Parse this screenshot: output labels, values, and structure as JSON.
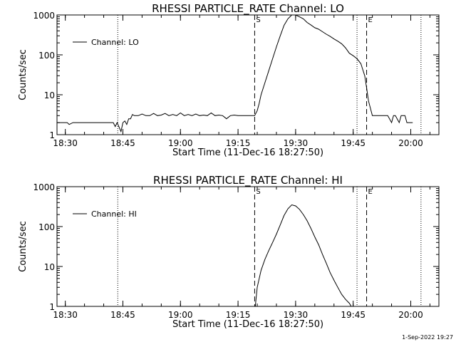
{
  "timestamp": "1-Sep-2022 19:27",
  "chart_data": [
    {
      "type": "line",
      "title": "RHESSI PARTICLE_RATE Channel: LO",
      "xlabel": "Start Time (11-Dec-16 18:27:50)",
      "ylabel": "Counts/sec",
      "y_scale": "log",
      "ylim": [
        1,
        1000
      ],
      "xlim": [
        "18:27:50",
        "20:07:20"
      ],
      "x_ticks": [
        "18:30",
        "18:45",
        "19:00",
        "19:15",
        "19:30",
        "19:45",
        "20:00"
      ],
      "y_ticks": [
        "1",
        "10",
        "100",
        "1000"
      ],
      "legend": {
        "position": "top-left",
        "entries": [
          "Channel: LO"
        ]
      },
      "markers": [
        {
          "label": "S",
          "time": "19:19:20",
          "style": "dashed"
        },
        {
          "label": "E",
          "time": "19:48:30",
          "style": "dashed"
        }
      ],
      "reference_lines": [
        {
          "time": "18:43:40",
          "style": "dotted"
        },
        {
          "time": "19:46:00",
          "style": "dotted"
        },
        {
          "time": "20:02:40",
          "style": "dotted"
        }
      ],
      "series": [
        {
          "name": "Channel: LO",
          "points": [
            [
              "18:27:50",
              2
            ],
            [
              "18:30:30",
              2
            ],
            [
              "18:31:00",
              1.8
            ],
            [
              "18:32:00",
              2
            ],
            [
              "18:33:30",
              2
            ],
            [
              "18:34:30",
              2
            ],
            [
              "18:35:30",
              2
            ],
            [
              "18:37:00",
              2
            ],
            [
              "18:38:30",
              2
            ],
            [
              "18:40:00",
              2
            ],
            [
              "18:41:30",
              2
            ],
            [
              "18:42:30",
              2
            ],
            [
              "18:43:00",
              1.6
            ],
            [
              "18:43:30",
              2
            ],
            [
              "18:44:30",
              1.2
            ],
            [
              "18:45:00",
              2
            ],
            [
              "18:45:30",
              2.2
            ],
            [
              "18:46:00",
              1.8
            ],
            [
              "18:46:30",
              2.5
            ],
            [
              "18:47:00",
              2.5
            ],
            [
              "18:47:30",
              3.2
            ],
            [
              "18:48:00",
              3
            ],
            [
              "18:49:00",
              3
            ],
            [
              "18:50:00",
              3.3
            ],
            [
              "18:51:00",
              3
            ],
            [
              "18:52:00",
              3
            ],
            [
              "18:53:00",
              3.4
            ],
            [
              "18:54:00",
              3
            ],
            [
              "18:55:00",
              3.1
            ],
            [
              "18:56:00",
              3.4
            ],
            [
              "18:57:00",
              3
            ],
            [
              "18:58:00",
              3.2
            ],
            [
              "18:59:00",
              3
            ],
            [
              "19:00:00",
              3.5
            ],
            [
              "19:01:00",
              3
            ],
            [
              "19:02:00",
              3.2
            ],
            [
              "19:03:00",
              3
            ],
            [
              "19:04:00",
              3.3
            ],
            [
              "19:05:00",
              3
            ],
            [
              "19:06:00",
              3.1
            ],
            [
              "19:07:00",
              3
            ],
            [
              "19:08:00",
              3.5
            ],
            [
              "19:09:00",
              3
            ],
            [
              "19:10:00",
              3.1
            ],
            [
              "19:11:00",
              3
            ],
            [
              "19:12:00",
              2.5
            ],
            [
              "19:13:00",
              3
            ],
            [
              "19:14:00",
              3.1
            ],
            [
              "19:15:00",
              3
            ],
            [
              "19:16:00",
              3
            ],
            [
              "19:17:00",
              3
            ],
            [
              "19:18:00",
              3
            ],
            [
              "19:19:20",
              3
            ],
            [
              "19:20:00",
              4
            ],
            [
              "19:20:30",
              6
            ],
            [
              "19:21:00",
              10
            ],
            [
              "19:22:00",
              20
            ],
            [
              "19:23:00",
              40
            ],
            [
              "19:24:00",
              80
            ],
            [
              "19:25:00",
              160
            ],
            [
              "19:26:00",
              300
            ],
            [
              "19:27:00",
              550
            ],
            [
              "19:28:00",
              800
            ],
            [
              "19:29:00",
              1000
            ],
            [
              "19:30:00",
              1000
            ],
            [
              "19:31:00",
              900
            ],
            [
              "19:32:00",
              800
            ],
            [
              "19:33:00",
              650
            ],
            [
              "19:34:00",
              560
            ],
            [
              "19:35:00",
              480
            ],
            [
              "19:36:00",
              440
            ],
            [
              "19:37:00",
              380
            ],
            [
              "19:38:00",
              330
            ],
            [
              "19:39:00",
              290
            ],
            [
              "19:40:00",
              250
            ],
            [
              "19:41:00",
              220
            ],
            [
              "19:42:00",
              190
            ],
            [
              "19:43:00",
              150
            ],
            [
              "19:44:00",
              110
            ],
            [
              "19:45:00",
              95
            ],
            [
              "19:46:00",
              80
            ],
            [
              "19:47:00",
              60
            ],
            [
              "19:48:00",
              30
            ],
            [
              "19:48:30",
              15
            ],
            [
              "19:49:00",
              7
            ],
            [
              "19:50:00",
              3
            ],
            [
              "19:51:00",
              3
            ],
            [
              "19:52:00",
              3
            ],
            [
              "19:53:00",
              3
            ],
            [
              "19:54:00",
              3
            ],
            [
              "19:55:00",
              2
            ],
            [
              "19:55:30",
              3
            ],
            [
              "19:56:00",
              3
            ],
            [
              "19:57:00",
              2
            ],
            [
              "19:57:30",
              3
            ],
            [
              "19:58:30",
              3
            ],
            [
              "19:59:00",
              2
            ],
            [
              "20:00:30",
              2
            ]
          ]
        }
      ]
    },
    {
      "type": "line",
      "title": "RHESSI PARTICLE_RATE Channel: HI",
      "xlabel": "Start Time (11-Dec-16 18:27:50)",
      "ylabel": "Counts/sec",
      "y_scale": "log",
      "ylim": [
        1,
        1000
      ],
      "xlim": [
        "18:27:50",
        "20:07:20"
      ],
      "x_ticks": [
        "18:30",
        "18:45",
        "19:00",
        "19:15",
        "19:30",
        "19:45",
        "20:00"
      ],
      "y_ticks": [
        "1",
        "10",
        "100",
        "1000"
      ],
      "legend": {
        "position": "top-left",
        "entries": [
          "Channel: HI"
        ]
      },
      "markers": [
        {
          "label": "S",
          "time": "19:19:20",
          "style": "dashed"
        },
        {
          "label": "E",
          "time": "19:48:30",
          "style": "dashed"
        }
      ],
      "reference_lines": [
        {
          "time": "18:43:40",
          "style": "dotted"
        },
        {
          "time": "19:46:00",
          "style": "dotted"
        },
        {
          "time": "20:02:40",
          "style": "dotted"
        }
      ],
      "series": [
        {
          "name": "Channel: HI",
          "points": [
            [
              "19:19:30",
              1
            ],
            [
              "19:20:00",
              3
            ],
            [
              "19:21:00",
              8
            ],
            [
              "19:22:00",
              15
            ],
            [
              "19:23:00",
              25
            ],
            [
              "19:24:00",
              40
            ],
            [
              "19:25:00",
              65
            ],
            [
              "19:26:00",
              110
            ],
            [
              "19:27:00",
              190
            ],
            [
              "19:28:00",
              280
            ],
            [
              "19:29:00",
              350
            ],
            [
              "19:30:00",
              330
            ],
            [
              "19:31:00",
              270
            ],
            [
              "19:32:00",
              200
            ],
            [
              "19:33:00",
              140
            ],
            [
              "19:34:00",
              90
            ],
            [
              "19:35:00",
              55
            ],
            [
              "19:36:00",
              35
            ],
            [
              "19:37:00",
              20
            ],
            [
              "19:38:00",
              12
            ],
            [
              "19:39:00",
              7
            ],
            [
              "19:40:00",
              4.5
            ],
            [
              "19:41:00",
              3
            ],
            [
              "19:42:00",
              2
            ],
            [
              "19:43:00",
              1.5
            ],
            [
              "19:44:00",
              1.2
            ],
            [
              "19:44:30",
              1
            ]
          ]
        }
      ]
    }
  ]
}
